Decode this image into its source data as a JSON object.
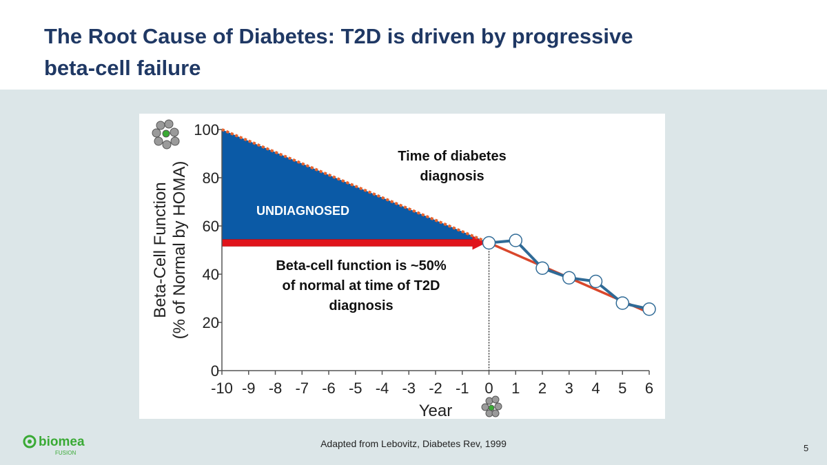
{
  "slide": {
    "title_lines": [
      "The Root Cause of Diabetes:  T2D is driven by progressive",
      "beta-cell failure"
    ],
    "source": "Adapted from Lebovitz, Diabetes Rev, 1999",
    "page_number": "5",
    "logo": {
      "name": "biomea",
      "tagline": "FUSION"
    }
  },
  "chart_data": {
    "type": "line",
    "y_label_lines": [
      "Beta-Cell Function",
      "(% of Normal by HOMA)"
    ],
    "x_label": "Year",
    "xlim": [
      -10,
      6
    ],
    "xticks": [
      -10,
      -9,
      -8,
      -7,
      -6,
      -5,
      -4,
      -3,
      -2,
      -1,
      0,
      1,
      2,
      3,
      4,
      5,
      6
    ],
    "ylim": [
      0,
      100
    ],
    "yticks": [
      0,
      20,
      40,
      60,
      80,
      100
    ],
    "series": [
      {
        "x": [
          -10,
          0
        ],
        "values": [
          100,
          53
        ],
        "color": "#e8632d",
        "dashed": true,
        "fill": "#0b5aa6"
      },
      {
        "x": [
          0,
          6
        ],
        "values": [
          53,
          24
        ],
        "color": "#d9472b"
      },
      {
        "x": [
          0,
          1,
          2,
          3,
          4,
          5,
          6
        ],
        "values": [
          53,
          54,
          42.5,
          38.5,
          37,
          28,
          25.5
        ],
        "color": "#2f6a96",
        "markers": true
      }
    ],
    "annotations": [
      {
        "lines": [
          "Time of diabetes",
          "diagnosis"
        ]
      },
      {
        "lines": [
          "UNDIAGNOSED"
        ]
      },
      {
        "lines": [
          "Beta-cell function is ~50%",
          "of normal at time of T2D",
          "diagnosis"
        ]
      }
    ]
  }
}
